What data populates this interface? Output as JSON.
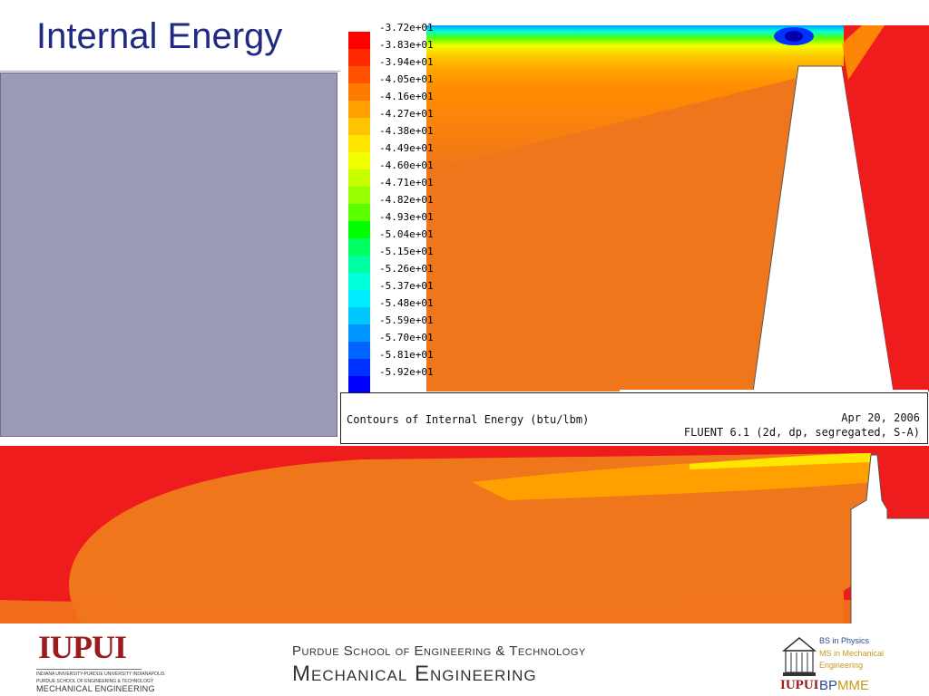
{
  "slide": {
    "title": "Internal Energy"
  },
  "contour_plot": {
    "legend": [
      {
        "label": "-3.72e+01",
        "color": "#ff0000"
      },
      {
        "label": "-3.83e+01",
        "color": "#ff2a00"
      },
      {
        "label": "-3.94e+01",
        "color": "#ff5200"
      },
      {
        "label": "-4.05e+01",
        "color": "#ff7a00"
      },
      {
        "label": "-4.16e+01",
        "color": "#ffa000"
      },
      {
        "label": "-4.27e+01",
        "color": "#ffc400"
      },
      {
        "label": "-4.38e+01",
        "color": "#ffe600"
      },
      {
        "label": "-4.49e+01",
        "color": "#f2ff00"
      },
      {
        "label": "-4.60e+01",
        "color": "#c8ff00"
      },
      {
        "label": "-4.71e+01",
        "color": "#96ff00"
      },
      {
        "label": "-4.82e+01",
        "color": "#5aff00"
      },
      {
        "label": "-4.93e+01",
        "color": "#00ff00"
      },
      {
        "label": "-5.04e+01",
        "color": "#00ff60"
      },
      {
        "label": "-5.15e+01",
        "color": "#00ffa0"
      },
      {
        "label": "-5.26e+01",
        "color": "#00ffd8"
      },
      {
        "label": "-5.37e+01",
        "color": "#00ecff"
      },
      {
        "label": "-5.48e+01",
        "color": "#00c8ff"
      },
      {
        "label": "-5.59e+01",
        "color": "#0096ff"
      },
      {
        "label": "-5.70e+01",
        "color": "#0064ff"
      },
      {
        "label": "-5.81e+01",
        "color": "#0032ff"
      },
      {
        "label": "-5.92e+01",
        "color": "#0000ff"
      }
    ],
    "caption": "Contours of Internal Energy (btu/lbm)",
    "date": "Apr 20, 2006",
    "solver": "FLUENT 6.1 (2d, dp, segregated, S-A)"
  },
  "footer": {
    "iupui_logo": {
      "wordmark": "IUPUI",
      "sub1": "INDIANA UNIVERSITY-PURDUE UNIVERSITY INDIANAPOLIS",
      "sub2": "PURDUE SCHOOL OF ENGINEERING & TECHNOLOGY",
      "sub3": "MECHANICAL ENGINEERING"
    },
    "school_line1": "Purdue School of Engineering & Technology",
    "school_line2": "Mechanical Engineering",
    "bpmme": {
      "line1": "BS in Physics",
      "line2": "MS in Mechanical",
      "line3": "Engineering",
      "iupui": "IUPUI",
      "name_bp": "BP",
      "name_mme": "MME"
    }
  },
  "colors": {
    "title": "#1f2a80",
    "red": "#ee1c1c",
    "orange": "#f0761c",
    "panel_gray": "#9a9ab4"
  }
}
